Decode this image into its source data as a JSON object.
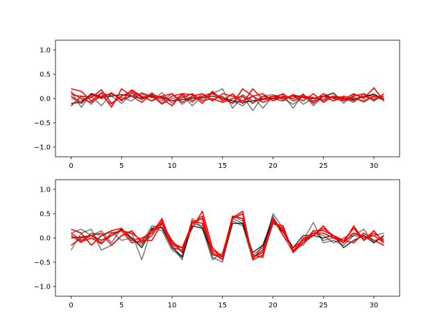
{
  "chart_data": [
    {
      "type": "line",
      "title": "",
      "xlabel": "",
      "ylabel": "",
      "xlim": [
        -1.55,
        32.55
      ],
      "ylim": [
        -1.2,
        1.2
      ],
      "xticks": [
        0,
        5,
        10,
        15,
        20,
        25,
        30
      ],
      "yticks": [
        -1.0,
        -0.5,
        0.0,
        0.5,
        1.0
      ],
      "ytick_labels": [
        "−1.0",
        "−0.5",
        "0.0",
        "0.5",
        "1.0"
      ],
      "grid": false,
      "x": [
        0,
        1,
        2,
        3,
        4,
        5,
        6,
        7,
        8,
        9,
        10,
        11,
        12,
        13,
        14,
        15,
        16,
        17,
        18,
        19,
        20,
        21,
        22,
        23,
        24,
        25,
        26,
        27,
        28,
        29,
        30,
        31
      ],
      "series": [
        {
          "color": "#000000",
          "opacity": 0.5,
          "values": [
            0.15,
            -0.18,
            0.1,
            0.05,
            -0.12,
            0.05,
            0.12,
            -0.03,
            0.12,
            -0.05,
            0.1,
            -0.12,
            0.03,
            -0.02,
            0.1,
            0.2,
            -0.2,
            0.05,
            -0.25,
            0.05,
            0.08,
            0.0,
            -0.12,
            0.05,
            -0.08,
            0.05,
            0.1,
            -0.05,
            0.03,
            -0.08,
            0.05,
            0.0
          ]
        },
        {
          "color": "#000000",
          "opacity": 0.5,
          "values": [
            0.08,
            0.05,
            -0.12,
            0.12,
            0.05,
            -0.1,
            0.1,
            0.05,
            -0.05,
            0.12,
            -0.1,
            0.08,
            -0.15,
            0.05,
            0.12,
            0.02,
            -0.05,
            -0.15,
            0.05,
            -0.2,
            0.05,
            0.08,
            -0.2,
            0.1,
            -0.15,
            0.05,
            0.12,
            -0.1,
            0.08,
            0.02,
            0.1,
            -0.05
          ]
        },
        {
          "color": "#000000",
          "opacity": 0.5,
          "values": [
            0.0,
            -0.05,
            0.05,
            -0.15,
            0.1,
            0.02,
            -0.05,
            0.12,
            0.05,
            -0.12,
            0.0,
            0.05,
            -0.08,
            0.1,
            -0.02,
            0.05,
            -0.1,
            0.08,
            -0.05,
            0.0,
            0.05,
            -0.02,
            0.08,
            -0.12,
            0.02,
            -0.05,
            0.05,
            0.0,
            -0.08,
            0.1,
            0.02,
            -0.02
          ]
        },
        {
          "color": "#000000",
          "opacity": 0.8,
          "values": [
            -0.1,
            -0.08,
            0.1,
            0.02,
            0.05,
            0.08,
            0.05,
            0.0,
            0.05,
            0.02,
            -0.05,
            -0.02,
            0.0,
            0.02,
            0.05,
            0.0,
            -0.05,
            -0.08,
            -0.05,
            -0.02,
            0.0,
            0.02,
            0.05,
            0.02,
            0.0,
            0.05,
            0.02,
            0.0,
            -0.02,
            0.05,
            0.08,
            0.0
          ]
        },
        {
          "color": "#ff0000",
          "opacity": 1.0,
          "values": [
            0.2,
            0.15,
            -0.05,
            0.12,
            -0.18,
            0.2,
            0.05,
            -0.08,
            0.1,
            0.0,
            -0.15,
            0.1,
            0.08,
            -0.1,
            0.15,
            -0.05,
            0.1,
            -0.1,
            0.2,
            -0.02,
            0.05,
            0.02,
            0.05,
            -0.05,
            0.1,
            -0.08,
            0.05,
            -0.02,
            0.1,
            0.0,
            0.22,
            -0.05
          ]
        },
        {
          "color": "#ff0000",
          "opacity": 1.0,
          "values": [
            -0.15,
            0.05,
            0.02,
            0.18,
            -0.1,
            0.05,
            0.15,
            0.02,
            0.08,
            -0.1,
            0.05,
            0.1,
            -0.05,
            0.05,
            0.1,
            0.0,
            -0.1,
            0.2,
            0.05,
            -0.08,
            0.0,
            -0.05,
            0.08,
            0.02,
            -0.05,
            0.1,
            0.0,
            -0.05,
            0.05,
            0.1,
            -0.05,
            0.1
          ]
        },
        {
          "color": "#ff0000",
          "opacity": 1.0,
          "values": [
            0.05,
            -0.1,
            0.08,
            0.0,
            0.12,
            -0.05,
            0.18,
            0.05,
            -0.05,
            0.05,
            0.1,
            -0.08,
            0.05,
            0.1,
            -0.05,
            0.1,
            0.05,
            -0.05,
            0.05,
            0.1,
            -0.05,
            0.05,
            0.0,
            0.08,
            -0.1,
            0.05,
            -0.05,
            0.05,
            0.0,
            -0.05,
            0.05,
            0.0
          ]
        },
        {
          "color": "#ff0000",
          "opacity": 1.0,
          "values": [
            0.12,
            0.0,
            -0.08,
            0.05,
            0.1,
            -0.02,
            0.05,
            0.1,
            0.02,
            0.05,
            -0.05,
            0.02,
            0.1,
            -0.05,
            0.0,
            -0.08,
            0.0,
            0.05,
            -0.1,
            0.05,
            0.0,
            0.1,
            -0.05,
            0.05,
            0.02,
            -0.02,
            0.05,
            0.02,
            -0.05,
            0.05,
            -0.02,
            0.05
          ]
        }
      ]
    },
    {
      "type": "line",
      "title": "",
      "xlabel": "",
      "ylabel": "",
      "xlim": [
        -1.55,
        32.55
      ],
      "ylim": [
        -1.2,
        1.2
      ],
      "xticks": [
        0,
        5,
        10,
        15,
        20,
        25,
        30
      ],
      "yticks": [
        -1.0,
        -0.5,
        0.0,
        0.5,
        1.0
      ],
      "ytick_labels": [
        "−1.0",
        "−0.5",
        "0.0",
        "0.5",
        "1.0"
      ],
      "grid": false,
      "x": [
        0,
        1,
        2,
        3,
        4,
        5,
        6,
        7,
        8,
        9,
        10,
        11,
        12,
        13,
        14,
        15,
        16,
        17,
        18,
        19,
        20,
        21,
        22,
        23,
        24,
        25,
        26,
        27,
        28,
        29,
        30,
        31
      ],
      "series": [
        {
          "color": "#000000",
          "opacity": 0.5,
          "values": [
            -0.25,
            0.1,
            0.18,
            -0.25,
            -0.15,
            0.05,
            0.1,
            -0.45,
            0.2,
            0.15,
            -0.25,
            -0.4,
            0.4,
            0.2,
            -0.45,
            -0.3,
            0.35,
            0.25,
            -0.45,
            -0.15,
            0.45,
            0.05,
            -0.3,
            -0.05,
            0.32,
            -0.1,
            -0.05,
            -0.15,
            0.05,
            0.18,
            -0.1,
            0.05
          ]
        },
        {
          "color": "#000000",
          "opacity": 0.5,
          "values": [
            0.1,
            0.18,
            0.05,
            0.15,
            -0.1,
            0.2,
            -0.05,
            -0.1,
            0.25,
            0.2,
            -0.15,
            -0.45,
            0.3,
            0.25,
            -0.4,
            -0.5,
            0.4,
            0.3,
            -0.4,
            -0.25,
            0.5,
            0.2,
            -0.25,
            -0.1,
            0.1,
            0.05,
            -0.1,
            0.0,
            0.1,
            0.05,
            -0.05,
            0.0
          ]
        },
        {
          "color": "#000000",
          "opacity": 0.5,
          "values": [
            0.05,
            -0.1,
            0.1,
            0.05,
            0.12,
            -0.05,
            0.0,
            -0.15,
            0.2,
            0.3,
            -0.1,
            -0.3,
            0.35,
            0.3,
            -0.35,
            -0.4,
            0.45,
            0.35,
            -0.35,
            -0.2,
            0.4,
            0.15,
            -0.2,
            -0.15,
            0.15,
            -0.05,
            0.0,
            -0.05,
            0.05,
            0.0,
            0.05,
            0.1
          ]
        },
        {
          "color": "#000000",
          "opacity": 0.8,
          "values": [
            0.0,
            0.02,
            0.05,
            -0.05,
            0.05,
            0.18,
            0.0,
            -0.2,
            0.18,
            0.22,
            -0.2,
            -0.38,
            0.25,
            0.2,
            -0.3,
            -0.45,
            0.3,
            0.3,
            -0.3,
            -0.15,
            0.35,
            0.12,
            -0.2,
            0.05,
            0.05,
            0.0,
            0.05,
            -0.2,
            -0.05,
            0.05,
            -0.1,
            0.05
          ]
        },
        {
          "color": "#ff0000",
          "opacity": 1.0,
          "values": [
            0.18,
            0.1,
            -0.15,
            0.05,
            0.15,
            0.2,
            -0.05,
            0.0,
            0.1,
            0.4,
            -0.15,
            -0.2,
            0.2,
            0.55,
            -0.2,
            -0.4,
            0.42,
            0.55,
            -0.45,
            -0.35,
            0.3,
            0.25,
            -0.3,
            0.0,
            0.05,
            0.2,
            0.05,
            -0.05,
            -0.1,
            0.1,
            -0.05,
            -0.15
          ]
        },
        {
          "color": "#ff0000",
          "opacity": 1.0,
          "values": [
            -0.15,
            0.0,
            0.05,
            -0.1,
            0.05,
            0.15,
            0.1,
            -0.05,
            -0.05,
            0.3,
            -0.05,
            -0.3,
            0.35,
            0.3,
            -0.25,
            -0.4,
            0.45,
            0.4,
            -0.35,
            -0.4,
            0.4,
            0.05,
            -0.2,
            -0.05,
            0.1,
            0.1,
            0.0,
            -0.05,
            0.2,
            -0.05,
            0.15,
            -0.1
          ]
        },
        {
          "color": "#ff0000",
          "opacity": 1.0,
          "values": [
            0.1,
            -0.05,
            0.05,
            0.1,
            -0.15,
            0.05,
            0.15,
            -0.1,
            0.05,
            0.35,
            -0.1,
            -0.2,
            0.3,
            0.45,
            -0.3,
            -0.45,
            0.4,
            0.5,
            -0.4,
            -0.3,
            0.35,
            0.15,
            -0.25,
            -0.1,
            0.05,
            0.25,
            0.0,
            -0.1,
            0.25,
            -0.05,
            0.1,
            -0.05
          ]
        },
        {
          "color": "#ff0000",
          "opacity": 1.0,
          "values": [
            0.05,
            -0.08,
            0.0,
            -0.12,
            0.1,
            0.15,
            -0.1,
            -0.05,
            0.15,
            0.3,
            -0.2,
            -0.25,
            0.3,
            0.4,
            -0.35,
            -0.35,
            0.45,
            0.4,
            -0.4,
            -0.25,
            0.3,
            0.2,
            -0.3,
            -0.1,
            0.15,
            0.15,
            0.05,
            -0.1,
            0.1,
            0.0,
            0.05,
            -0.1
          ]
        }
      ]
    }
  ]
}
